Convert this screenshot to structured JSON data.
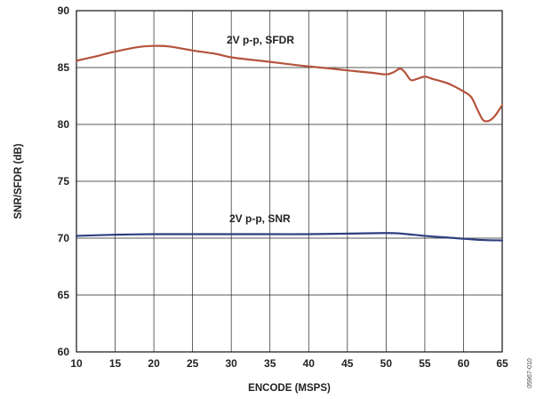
{
  "chart_data": {
    "type": "line",
    "title": "",
    "xlabel": "ENCODE (MSPS)",
    "ylabel": "SNR/SFDR (dB)",
    "xlim": [
      10,
      65
    ],
    "ylim": [
      60,
      90
    ],
    "xticks": [
      10,
      15,
      20,
      25,
      30,
      35,
      40,
      45,
      50,
      55,
      60,
      65
    ],
    "yticks": [
      60,
      65,
      70,
      75,
      80,
      85,
      90
    ],
    "grid": true,
    "legend": "none",
    "series": [
      {
        "name": "2V p-p, SFDR",
        "color": "#b5533c",
        "x": [
          10,
          12,
          15,
          18,
          20,
          22,
          25,
          28,
          30,
          33,
          35,
          38,
          40,
          43,
          45,
          48,
          50,
          51,
          51.8,
          52.4,
          53.2,
          54,
          55,
          56,
          58,
          60,
          61,
          61.8,
          62.5,
          63.2,
          64,
          65
        ],
        "y": [
          85.6,
          85.9,
          86.4,
          86.8,
          86.9,
          86.85,
          86.5,
          86.2,
          85.9,
          85.65,
          85.5,
          85.25,
          85.1,
          84.9,
          84.75,
          84.55,
          84.4,
          84.6,
          84.9,
          84.6,
          83.9,
          84.0,
          84.2,
          84.0,
          83.6,
          82.9,
          82.4,
          81.3,
          80.4,
          80.3,
          80.7,
          81.7
        ]
      },
      {
        "name": "2V p-p, SNR",
        "color": "#2e3f80",
        "x": [
          10,
          15,
          20,
          25,
          30,
          35,
          40,
          45,
          50,
          52,
          55,
          58,
          60,
          62,
          65
        ],
        "y": [
          70.2,
          70.3,
          70.35,
          70.35,
          70.35,
          70.35,
          70.35,
          70.4,
          70.45,
          70.4,
          70.2,
          70.05,
          69.95,
          69.85,
          69.8
        ]
      }
    ],
    "annotations": [
      "2V p-p, SFDR",
      "2V p-p, SNR"
    ],
    "figure_code": "05967-010"
  }
}
